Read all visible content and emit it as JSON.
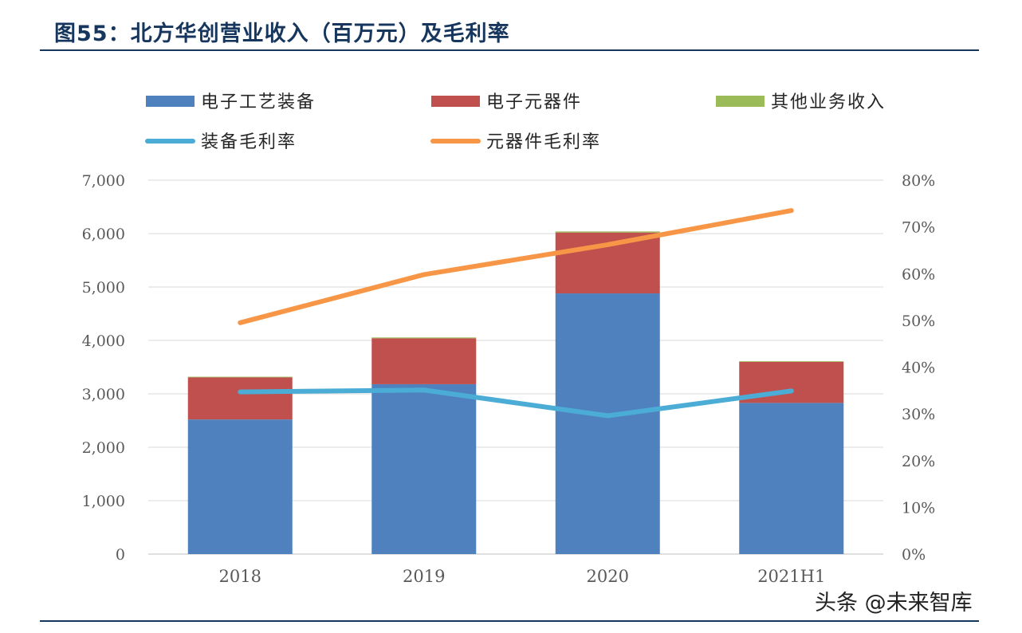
{
  "header": {
    "title": "图55：北方华创营业收入（百万元）及毛利率"
  },
  "watermark": "头条 @未来智库",
  "chart_data": {
    "type": "bar",
    "stacked": true,
    "categories": [
      "2018",
      "2019",
      "2020",
      "2021H1"
    ],
    "series": [
      {
        "name": "电子工艺装备",
        "type": "bar",
        "axis": "left",
        "color": "#4e81bd",
        "values": [
          2520,
          3180,
          4880,
          2830
        ]
      },
      {
        "name": "电子元器件",
        "type": "bar",
        "axis": "left",
        "color": "#c0504d",
        "values": [
          790,
          860,
          1140,
          770
        ]
      },
      {
        "name": "其他业务收入",
        "type": "bar",
        "axis": "left",
        "color": "#9bbb59",
        "values": [
          10,
          15,
          20,
          10
        ]
      },
      {
        "name": "装备毛利率",
        "type": "line",
        "axis": "right",
        "color": "#4bacd6",
        "values": [
          34.7,
          35.1,
          29.6,
          34.9
        ]
      },
      {
        "name": "元器件毛利率",
        "type": "line",
        "axis": "right",
        "color": "#f79646",
        "values": [
          49.5,
          59.8,
          66.2,
          73.5
        ]
      }
    ],
    "y_left": {
      "range": [
        0,
        7000
      ],
      "ticks": [
        "0",
        "1,000",
        "2,000",
        "3,000",
        "4,000",
        "5,000",
        "6,000",
        "7,000"
      ]
    },
    "y_right": {
      "range": [
        0,
        80
      ],
      "ticks": [
        "0%",
        "10%",
        "20%",
        "30%",
        "40%",
        "50%",
        "60%",
        "70%",
        "80%"
      ]
    },
    "grid": true,
    "legend": "top"
  }
}
